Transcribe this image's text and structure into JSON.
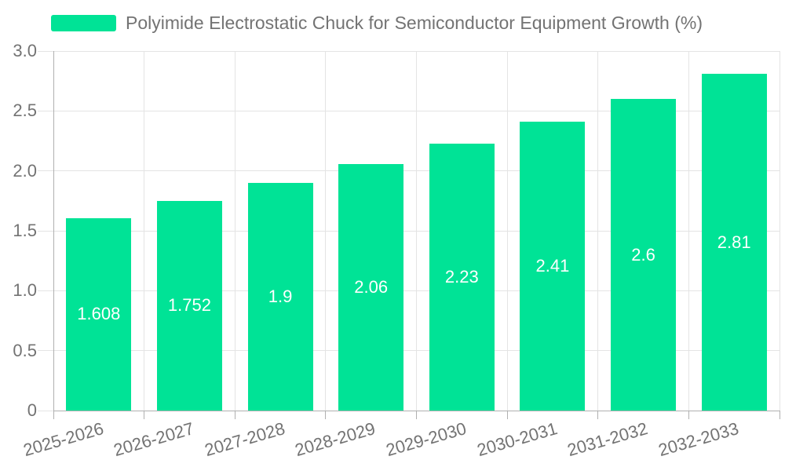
{
  "chart_data": {
    "type": "bar",
    "title": "Polyimide Electrostatic Chuck for Semiconductor Equipment Growth (%)",
    "categories": [
      "2025-2026",
      "2026-2027",
      "2027-2028",
      "2028-2029",
      "2029-2030",
      "2030-2031",
      "2031-2032",
      "2032-2033"
    ],
    "values": [
      1.608,
      1.752,
      1.9,
      2.06,
      2.23,
      2.41,
      2.6,
      2.81
    ],
    "value_labels": [
      "1.608",
      "1.752",
      "1.9",
      "2.06",
      "2.23",
      "2.41",
      "2.6",
      "2.81"
    ],
    "xlabel": "",
    "ylabel": "",
    "ylim": [
      0,
      3
    ],
    "ytick_values": [
      0,
      0.5,
      1,
      1.5,
      2,
      2.5,
      3
    ],
    "ytick_labels": [
      "0",
      "0.5",
      "1.0",
      "1.5",
      "2.0",
      "2.5",
      "3.0"
    ],
    "grid": true,
    "legend_position": "top-left",
    "colors": {
      "bar": "#00E396",
      "grid": "#e4e4e4",
      "axis": "#b0b0b0",
      "text": "#737373",
      "value_label": "#ffffff",
      "background": "#ffffff"
    }
  },
  "legend": {
    "series_label": "Polyimide Electrostatic Chuck for Semiconductor Equipment Growth (%)"
  }
}
